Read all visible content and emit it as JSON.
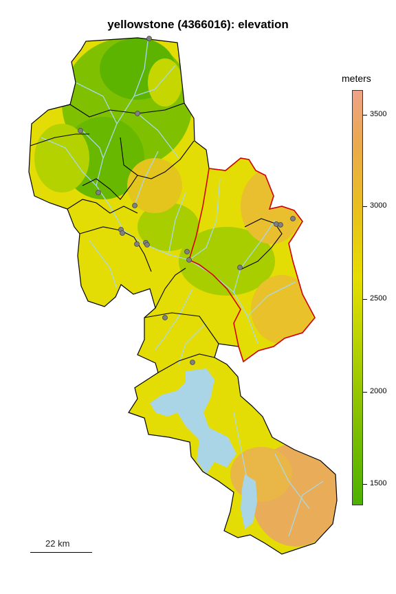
{
  "title": "yellowstone (4366016): elevation",
  "legend": {
    "title": "meters",
    "ticks": [
      "3500",
      "3000",
      "2500",
      "2000",
      "1500"
    ],
    "colors": [
      "#4db000",
      "#8fc400",
      "#c9d800",
      "#e6dd00",
      "#e9c21a",
      "#eaa850",
      "#eea388"
    ]
  },
  "scale_bar": {
    "label": "22 km"
  },
  "map_colors": {
    "basin_border": "#000000",
    "highlight_border": "#d40000",
    "streams": "#a8d8ea",
    "lake": "#a9d5e6",
    "gauges": "#808080"
  }
}
